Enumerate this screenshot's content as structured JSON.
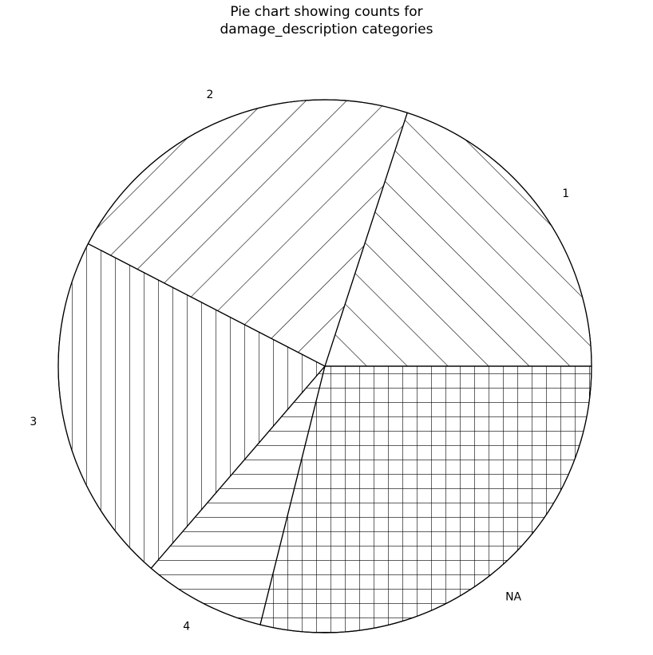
{
  "chart_data": {
    "type": "pie",
    "title_lines": [
      "Pie chart showing counts for",
      "damage_description categories"
    ],
    "slices": [
      {
        "label": "NA",
        "value": 28.9,
        "hatch": "grid"
      },
      {
        "label": "4",
        "value": 7.4,
        "hatch": "horizontal"
      },
      {
        "label": "3",
        "value": 21.3,
        "hatch": "vertical"
      },
      {
        "label": "2",
        "value": 22.4,
        "hatch": "backslash"
      },
      {
        "label": "1",
        "value": 20.0,
        "hatch": "forwardslash"
      }
    ],
    "start_angle": 0,
    "direction": "clockwise-on-screen",
    "legend": "none",
    "edge_color": "#000000",
    "face_color": "#ffffff"
  }
}
